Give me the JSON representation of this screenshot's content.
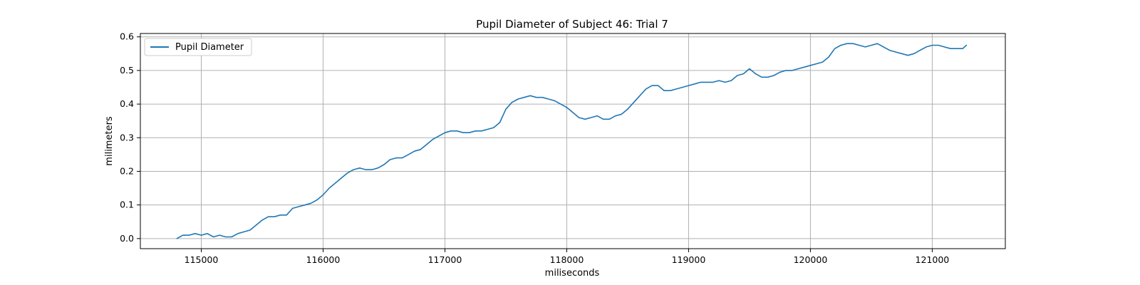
{
  "chart_data": {
    "type": "line",
    "title": "Pupil Diameter of Subject 46: Trial 7",
    "xlabel": "miliseconds",
    "ylabel": "milimeters",
    "xlim": [
      114500,
      121600
    ],
    "ylim": [
      -0.03,
      0.61
    ],
    "xticks": [
      115000,
      116000,
      117000,
      118000,
      119000,
      120000,
      121000
    ],
    "yticks": [
      0.0,
      0.1,
      0.2,
      0.3,
      0.4,
      0.5,
      0.6
    ],
    "ytick_labels": [
      "0.0",
      "0.1",
      "0.2",
      "0.3",
      "0.4",
      "0.5",
      "0.6"
    ],
    "grid": true,
    "legend": {
      "position": "upper-left",
      "entries": [
        "Pupil Diameter"
      ]
    },
    "series": [
      {
        "name": "Pupil Diameter",
        "color": "#1f77b4",
        "x": [
          114800,
          114850,
          114900,
          114950,
          115000,
          115050,
          115100,
          115150,
          115200,
          115250,
          115300,
          115350,
          115400,
          115450,
          115500,
          115550,
          115600,
          115650,
          115700,
          115750,
          115800,
          115850,
          115900,
          115950,
          116000,
          116050,
          116100,
          116150,
          116200,
          116250,
          116300,
          116350,
          116400,
          116450,
          116500,
          116550,
          116600,
          116650,
          116700,
          116750,
          116800,
          116850,
          116900,
          116950,
          117000,
          117050,
          117100,
          117150,
          117200,
          117250,
          117300,
          117350,
          117400,
          117450,
          117500,
          117550,
          117600,
          117650,
          117700,
          117750,
          117800,
          117850,
          117900,
          117950,
          118000,
          118050,
          118100,
          118150,
          118200,
          118250,
          118300,
          118350,
          118400,
          118450,
          118500,
          118550,
          118600,
          118650,
          118700,
          118750,
          118800,
          118850,
          118900,
          118950,
          119000,
          119050,
          119100,
          119150,
          119200,
          119250,
          119300,
          119350,
          119400,
          119450,
          119500,
          119550,
          119600,
          119650,
          119700,
          119750,
          119800,
          119850,
          119900,
          119950,
          120000,
          120050,
          120100,
          120150,
          120200,
          120250,
          120300,
          120350,
          120400,
          120450,
          120500,
          120550,
          120600,
          120650,
          120700,
          120750,
          120800,
          120850,
          120900,
          120950,
          121000,
          121050,
          121100,
          121150,
          121200,
          121250,
          121280
        ],
        "values": [
          0.0,
          0.01,
          0.01,
          0.015,
          0.01,
          0.015,
          0.005,
          0.01,
          0.005,
          0.005,
          0.015,
          0.02,
          0.025,
          0.04,
          0.055,
          0.065,
          0.065,
          0.07,
          0.07,
          0.09,
          0.095,
          0.1,
          0.105,
          0.115,
          0.13,
          0.15,
          0.165,
          0.18,
          0.195,
          0.205,
          0.21,
          0.205,
          0.205,
          0.21,
          0.22,
          0.235,
          0.24,
          0.24,
          0.25,
          0.26,
          0.265,
          0.28,
          0.295,
          0.305,
          0.315,
          0.32,
          0.32,
          0.315,
          0.315,
          0.32,
          0.32,
          0.325,
          0.33,
          0.345,
          0.385,
          0.405,
          0.415,
          0.42,
          0.425,
          0.42,
          0.42,
          0.415,
          0.41,
          0.4,
          0.39,
          0.375,
          0.36,
          0.355,
          0.36,
          0.365,
          0.355,
          0.355,
          0.365,
          0.37,
          0.385,
          0.405,
          0.425,
          0.445,
          0.455,
          0.455,
          0.44,
          0.44,
          0.445,
          0.45,
          0.455,
          0.46,
          0.465,
          0.465,
          0.465,
          0.47,
          0.465,
          0.47,
          0.485,
          0.49,
          0.505,
          0.49,
          0.48,
          0.48,
          0.485,
          0.495,
          0.5,
          0.5,
          0.505,
          0.51,
          0.515,
          0.52,
          0.525,
          0.54,
          0.565,
          0.575,
          0.58,
          0.58,
          0.575,
          0.57,
          0.575,
          0.58,
          0.57,
          0.56,
          0.555,
          0.55,
          0.545,
          0.55,
          0.56,
          0.57,
          0.575,
          0.575,
          0.57,
          0.565,
          0.565,
          0.565,
          0.575
        ]
      }
    ]
  }
}
